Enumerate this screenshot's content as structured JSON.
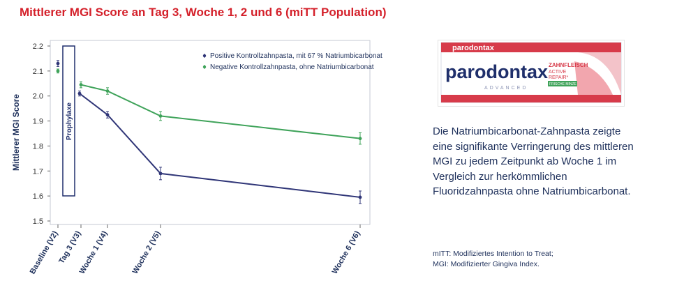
{
  "page_title": "Mittlerer MGI Score an Tag 3, Woche 1, 2 und 6 (miTT Population)",
  "chart_data": {
    "type": "line",
    "title": "Mittlerer MGI Score an Tag 3, Woche 1, 2 und 6 (miTT Population)",
    "xlabel": "",
    "ylabel": "Mittlerer MGI Score",
    "ylim": [
      1.5,
      2.2
    ],
    "yticks": [
      "2.2",
      "2.1",
      "2.0",
      "1.9",
      "1.8",
      "1.7",
      "1.6",
      "1.5"
    ],
    "x_days": [
      0,
      3,
      7,
      14,
      42
    ],
    "categories": [
      "Baseline (V2)",
      "Tag 3 (V3)",
      "Woche 1 (V4)",
      "Woche 2 (V5)",
      "Woche 6 (V6)"
    ],
    "annotation": "Prophylaxe",
    "series": [
      {
        "name": "Positive Kontrollzahnpasta, mit 67 % Natriumbicarbonat",
        "color": "#2f3577",
        "values": [
          2.13,
          2.01,
          1.925,
          1.69,
          1.595
        ],
        "errors": [
          0.012,
          0.01,
          0.013,
          0.025,
          0.025
        ]
      },
      {
        "name": "Negative Kontrollzahnpasta, ohne Natriumbicarbonat",
        "color": "#3fa35a",
        "values": [
          2.1,
          2.045,
          2.02,
          1.92,
          1.83
        ],
        "errors": [
          0.008,
          0.012,
          0.013,
          0.018,
          0.023
        ]
      }
    ]
  },
  "product": {
    "brand": "parodontax",
    "tagline_1": "ZAHNFLEISCH",
    "tagline_2": "ACTIVE",
    "tagline_3": "REPAIR*",
    "sub": "ADVANCED",
    "flavor": "FRISCHE MINZE"
  },
  "description": "Die Natriumbicarbonat-Zahnpasta zeigte eine signifikante Verringerung des mittleren MGI zu jedem Zeitpunkt ab Woche 1 im Vergleich zur herkömmlichen Fluoridzahnpasta ohne Natriumbicarbonat.",
  "footnotes": [
    "mITT: Modifiziertes Intention to Treat;",
    "MGI: Modifizierter Gingiva Index."
  ],
  "colors": {
    "title": "#d4202a",
    "text": "#1d2f5a",
    "positive": "#2f3577",
    "negative": "#3fa35a"
  }
}
